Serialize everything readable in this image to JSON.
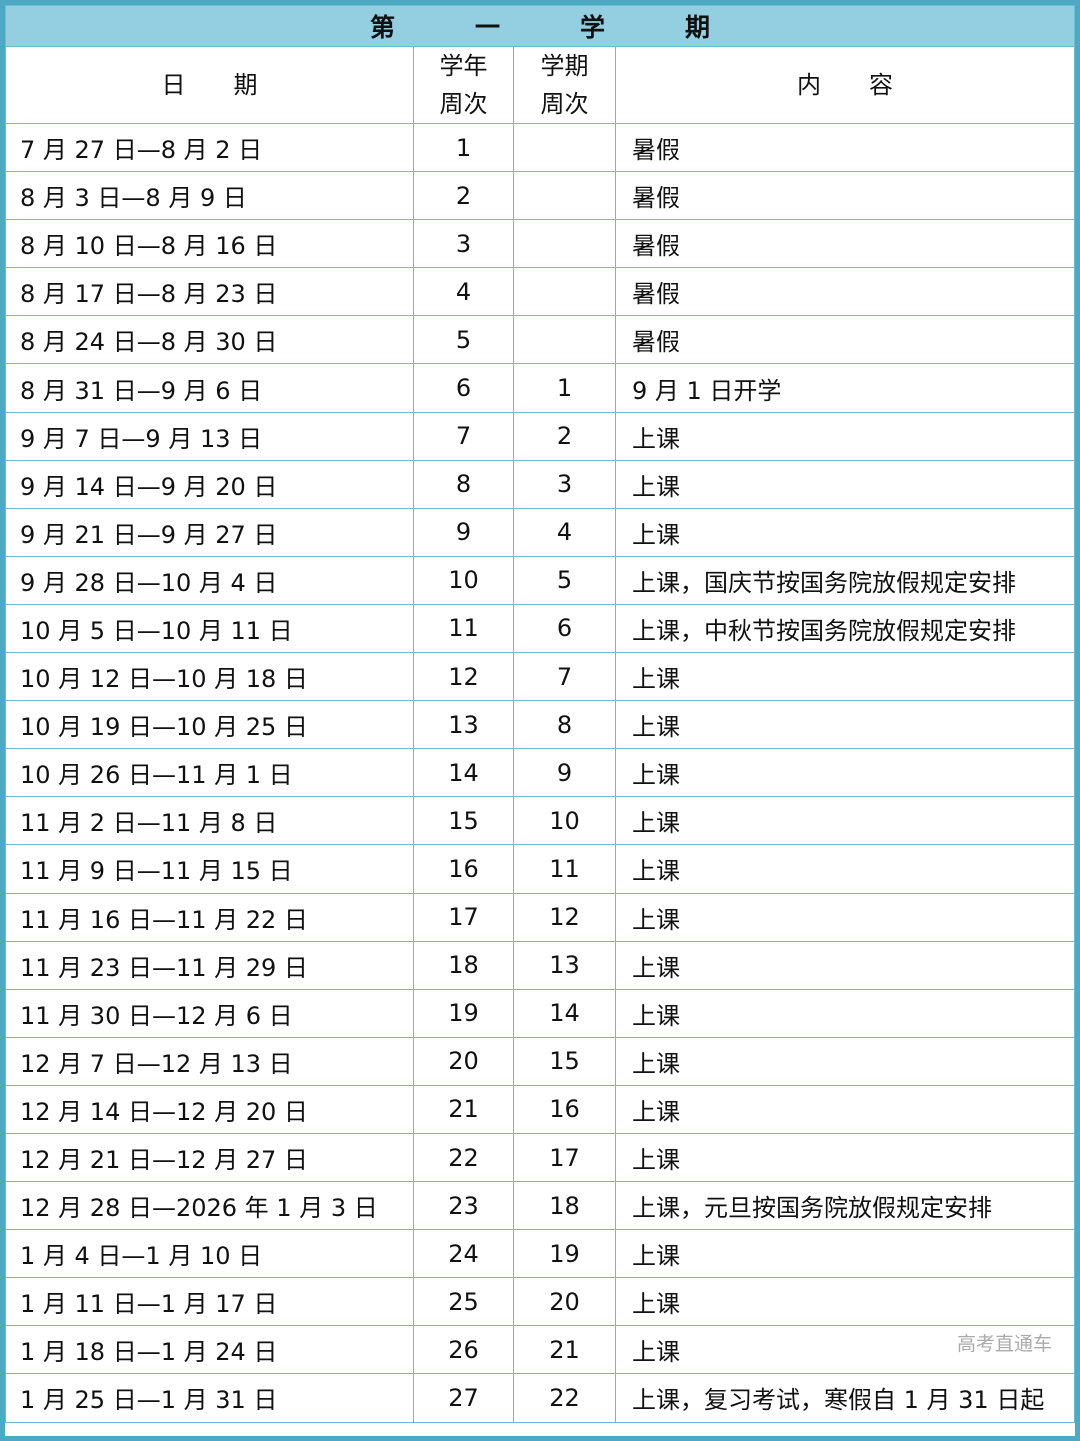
{
  "title": [
    "第",
    "一",
    "学",
    "期"
  ],
  "headers": {
    "date": "日　　期",
    "year_week": [
      "学年",
      "周次"
    ],
    "term_week": [
      "学期",
      "周次"
    ],
    "content": "内　　容"
  },
  "rows": [
    [
      "7 月 27 日—8 月 2 日",
      "1",
      "",
      "暑假"
    ],
    [
      "8 月 3 日—8 月 9 日",
      "2",
      "",
      "暑假"
    ],
    [
      "8 月 10 日—8 月 16 日",
      "3",
      "",
      "暑假"
    ],
    [
      "8 月 17 日—8 月 23 日",
      "4",
      "",
      "暑假"
    ],
    [
      "8 月 24 日—8 月 30 日",
      "5",
      "",
      "暑假"
    ],
    [
      "8 月 31 日—9 月 6 日",
      "6",
      "1",
      "9 月 1 日开学"
    ],
    [
      "9 月 7 日—9 月 13 日",
      "7",
      "2",
      "上课"
    ],
    [
      "9 月 14 日—9 月 20 日",
      "8",
      "3",
      "上课"
    ],
    [
      "9 月 21 日—9 月 27 日",
      "9",
      "4",
      "上课"
    ],
    [
      "9 月 28 日—10 月 4 日",
      "10",
      "5",
      "上课，国庆节按国务院放假规定安排"
    ],
    [
      "10 月 5 日—10 月 11 日",
      "11",
      "6",
      "上课，中秋节按国务院放假规定安排"
    ],
    [
      "10 月 12 日—10 月 18 日",
      "12",
      "7",
      "上课"
    ],
    [
      "10 月 19 日—10 月 25 日",
      "13",
      "8",
      "上课"
    ],
    [
      "10 月 26 日—11 月 1 日",
      "14",
      "9",
      "上课"
    ],
    [
      "11 月 2 日—11 月 8 日",
      "15",
      "10",
      "上课"
    ],
    [
      "11 月 9 日—11 月 15 日",
      "16",
      "11",
      "上课"
    ],
    [
      "11 月 16 日—11 月 22 日",
      "17",
      "12",
      "上课"
    ],
    [
      "11 月 23 日—11 月 29 日",
      "18",
      "13",
      "上课"
    ],
    [
      "11 月 30 日—12 月 6 日",
      "19",
      "14",
      "上课"
    ],
    [
      "12 月 7 日—12 月 13 日",
      "20",
      "15",
      "上课"
    ],
    [
      "12 月 14 日—12 月 20 日",
      "21",
      "16",
      "上课"
    ],
    [
      "12 月 21 日—12 月 27 日",
      "22",
      "17",
      "上课"
    ],
    [
      "12 月 28 日—2026 年 1 月 3 日",
      "23",
      "18",
      "上课，元旦按国务院放假规定安排"
    ],
    [
      "1 月 4 日—1 月 10 日",
      "24",
      "19",
      "上课"
    ],
    [
      "1 月 11 日—1 月 17 日",
      "25",
      "20",
      "上课"
    ],
    [
      "1 月 18 日—1 月 24 日",
      "26",
      "21",
      "上课"
    ],
    [
      "1 月 25 日—1 月 31 日",
      "27",
      "22",
      "上课，复习考试，寒假自 1 月 31 日起"
    ]
  ],
  "watermark": "高考直通车",
  "colors": {
    "border": "#4ea9c5",
    "header_bg": "#93cfe0",
    "grid": "#6bbccd"
  }
}
